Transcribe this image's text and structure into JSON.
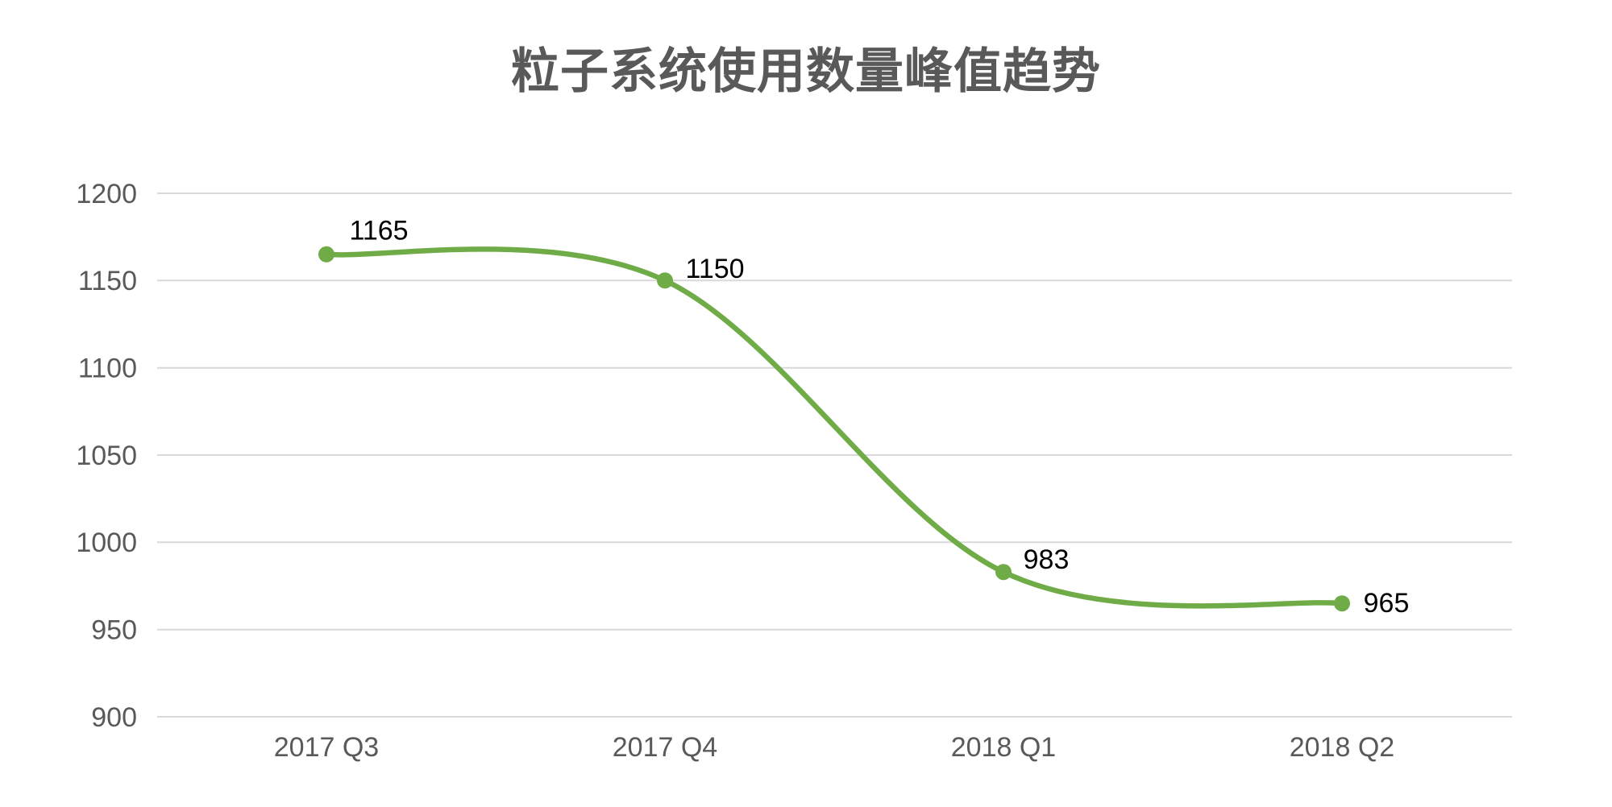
{
  "title": "粒子系统使用数量峰值趋势",
  "colors": {
    "background": "#FFFFFF",
    "line": "#6FAC47",
    "marker": "#6FAC47",
    "grid": "#D9D9D9",
    "title_text": "#595959",
    "axis_text": "#595959",
    "data_label_text": "#000000"
  },
  "chart_data": {
    "type": "line",
    "smooth": true,
    "title": "粒子系统使用数量峰值趋势",
    "categories": [
      "2017 Q3",
      "2017 Q4",
      "2018 Q1",
      "2018 Q2"
    ],
    "values": [
      1165,
      1150,
      983,
      965
    ],
    "data_labels": [
      "1165",
      "1150",
      "983",
      "965"
    ],
    "yticks": [
      1200,
      1150,
      1100,
      1050,
      1000,
      950,
      900
    ],
    "ylim": [
      900,
      1200
    ],
    "xlabel": "",
    "ylabel": "",
    "grid": true,
    "legend": "none",
    "markers": true
  }
}
